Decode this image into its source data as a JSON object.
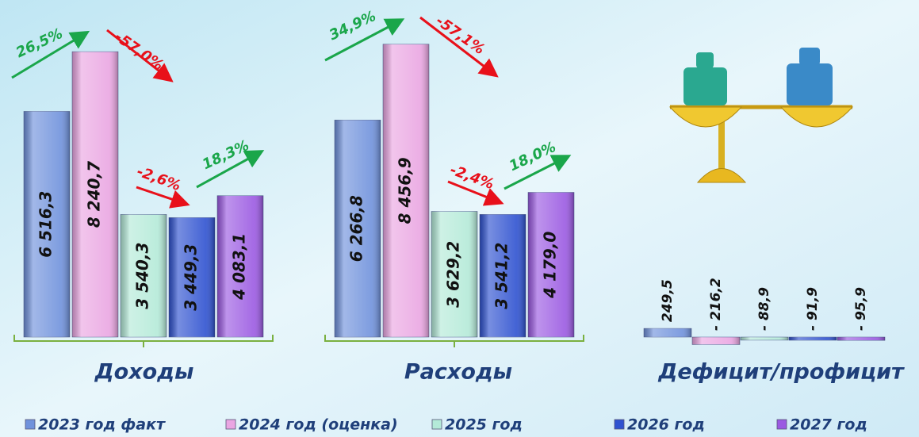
{
  "chart_data": [
    {
      "type": "bar",
      "title": "Доходы",
      "values": [
        6516.3,
        8240.7,
        3540.3,
        3449.3,
        4083.1
      ],
      "value_labels": [
        "6 516,3",
        "8 240,7",
        "3 540,3",
        "3 449,3",
        "4 083,1"
      ],
      "ylim": [
        0,
        9000
      ],
      "annotations": [
        {
          "text": "26,5%",
          "color": "#1aa64a"
        },
        {
          "text": "-57,0%",
          "color": "#e8101a"
        },
        {
          "text": "-2,6%",
          "color": "#e8101a"
        },
        {
          "text": "18,3%",
          "color": "#1aa64a"
        }
      ]
    },
    {
      "type": "bar",
      "title": "Расходы",
      "values": [
        6266.8,
        8456.9,
        3629.2,
        3541.2,
        4179.0
      ],
      "value_labels": [
        "6 266,8",
        "8 456,9",
        "3 629,2",
        "3 541,2",
        "4 179,0"
      ],
      "ylim": [
        0,
        9000
      ],
      "annotations": [
        {
          "text": "34,9%",
          "color": "#1aa64a"
        },
        {
          "text": "-57,1%",
          "color": "#e8101a"
        },
        {
          "text": "-2,4%",
          "color": "#e8101a"
        },
        {
          "text": "18,0%",
          "color": "#1aa64a"
        }
      ]
    },
    {
      "type": "bar",
      "title": "Дефицит/профицит",
      "values": [
        249.5,
        -216.2,
        -88.9,
        -91.9,
        -95.9
      ],
      "value_labels": [
        "249,5",
        "- 216,2",
        "- 88,9",
        "- 91,9",
        "- 95,9"
      ],
      "ylim": [
        -500,
        9000
      ]
    }
  ],
  "legend": [
    {
      "name": "2023 год факт",
      "color": "#7092dc"
    },
    {
      "name": "2024 год (оценка)",
      "color": "#eaa6e2"
    },
    {
      "name": "2025 год",
      "color": "#b4ead8"
    },
    {
      "name": "2026 год",
      "color": "#2f52d0"
    },
    {
      "name": "2027 год",
      "color": "#9b5ae2"
    }
  ]
}
